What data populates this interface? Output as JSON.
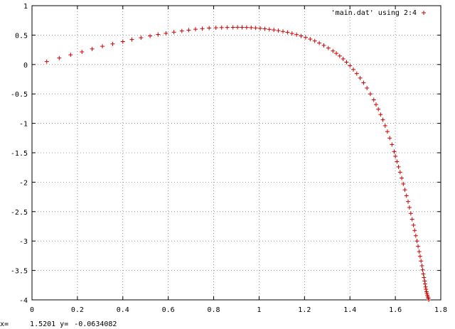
{
  "colors": {
    "series": "#cc0000",
    "grid": "#808080",
    "axis": "#000000"
  },
  "status_bar": {
    "x_label": "x=",
    "x_value": "1.5201",
    "y_label": "y=",
    "y_value": "-0.0634082"
  },
  "chart_data": {
    "type": "scatter",
    "title": "",
    "xlabel": "",
    "ylabel": "",
    "xlim": [
      0,
      1.8
    ],
    "ylim": [
      -4,
      1
    ],
    "x_ticks": [
      0,
      0.2,
      0.4,
      0.6,
      0.8,
      1,
      1.2,
      1.4,
      1.6,
      1.8
    ],
    "x_tick_labels": [
      "0",
      "0.2",
      "0.4",
      "0.6",
      "0.8",
      "1",
      "1.2",
      "1.4",
      "1.6",
      "1.8"
    ],
    "y_ticks": [
      1,
      0.5,
      0,
      -0.5,
      -1,
      -1.5,
      -2,
      -2.5,
      -3,
      -3.5,
      -4
    ],
    "y_tick_labels": [
      "1",
      "0.5",
      "0",
      "-0.5",
      "-1",
      "-1.5",
      "-2",
      "-2.5",
      "-3",
      "-3.5",
      "-4"
    ],
    "grid": true,
    "legend": {
      "placement": "top-right",
      "marker": "+"
    },
    "series": [
      {
        "name": "'main.dat' using 2:4",
        "marker": "+",
        "x": [
          0.065,
          0.12,
          0.17,
          0.22,
          0.265,
          0.31,
          0.355,
          0.4,
          0.44,
          0.48,
          0.52,
          0.555,
          0.59,
          0.625,
          0.66,
          0.69,
          0.72,
          0.75,
          0.78,
          0.81,
          0.835,
          0.86,
          0.885,
          0.905,
          0.925,
          0.945,
          0.965,
          0.985,
          1.005,
          1.025,
          1.045,
          1.065,
          1.085,
          1.105,
          1.125,
          1.145,
          1.165,
          1.185,
          1.205,
          1.225,
          1.245,
          1.265,
          1.285,
          1.305,
          1.325,
          1.34,
          1.355,
          1.37,
          1.385,
          1.4,
          1.415,
          1.43,
          1.445,
          1.46,
          1.475,
          1.49,
          1.505,
          1.515,
          1.525,
          1.535,
          1.545,
          1.555,
          1.565,
          1.575,
          1.585,
          1.595,
          1.6,
          1.607,
          1.614,
          1.621,
          1.628,
          1.635,
          1.642,
          1.649,
          1.656,
          1.662,
          1.668,
          1.674,
          1.68,
          1.685,
          1.69,
          1.695,
          1.7,
          1.705,
          1.709,
          1.713,
          1.717,
          1.72,
          1.723,
          1.726,
          1.729,
          1.731,
          1.733,
          1.735,
          1.737,
          1.739,
          1.741,
          1.743,
          1.745,
          1.747
        ],
        "y": [
          0.05,
          0.11,
          0.165,
          0.215,
          0.265,
          0.31,
          0.35,
          0.39,
          0.425,
          0.455,
          0.485,
          0.51,
          0.53,
          0.55,
          0.57,
          0.585,
          0.6,
          0.61,
          0.62,
          0.625,
          0.628,
          0.63,
          0.632,
          0.633,
          0.632,
          0.63,
          0.627,
          0.622,
          0.615,
          0.607,
          0.598,
          0.588,
          0.576,
          0.562,
          0.546,
          0.528,
          0.508,
          0.485,
          0.46,
          0.432,
          0.4,
          0.365,
          0.325,
          0.28,
          0.23,
          0.19,
          0.145,
          0.095,
          0.04,
          -0.02,
          -0.085,
          -0.155,
          -0.23,
          -0.31,
          -0.4,
          -0.5,
          -0.6,
          -0.68,
          -0.76,
          -0.85,
          -0.94,
          -1.04,
          -1.14,
          -1.25,
          -1.36,
          -1.48,
          -1.56,
          -1.65,
          -1.74,
          -1.83,
          -1.93,
          -2.03,
          -2.13,
          -2.23,
          -2.33,
          -2.43,
          -2.53,
          -2.63,
          -2.73,
          -2.82,
          -2.91,
          -3.0,
          -3.09,
          -3.18,
          -3.26,
          -3.34,
          -3.42,
          -3.49,
          -3.56,
          -3.62,
          -3.68,
          -3.73,
          -3.78,
          -3.82,
          -3.86,
          -3.89,
          -3.92,
          -3.95,
          -3.97,
          -4.0
        ]
      }
    ]
  }
}
